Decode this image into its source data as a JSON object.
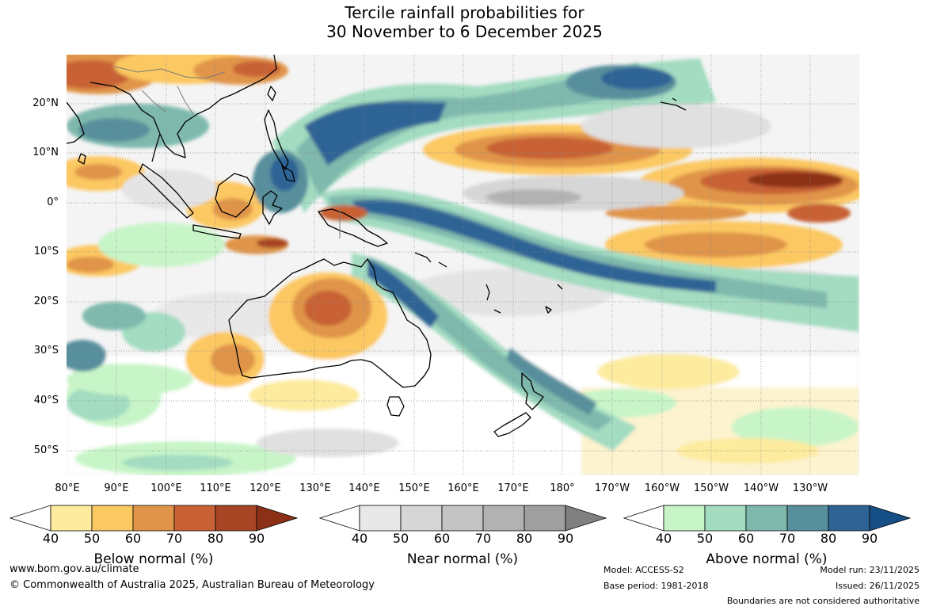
{
  "title": {
    "line1": "Tercile rainfall probabilities for",
    "line2": "30 November to 6 December 2025"
  },
  "map": {
    "region": "Australia, Maritime Continent and South-West Pacific",
    "lat_labels": [
      "20°N",
      "10°N",
      "0°",
      "10°S",
      "20°S",
      "30°S",
      "40°S",
      "50°S"
    ],
    "lon_labels": [
      "80°E",
      "90°E",
      "100°E",
      "110°E",
      "120°E",
      "130°E",
      "140°E",
      "150°E",
      "160°E",
      "170°E",
      "180°",
      "170°W",
      "160°W",
      "150°W",
      "140°W",
      "130°W"
    ]
  },
  "legends": [
    {
      "title": "Below normal (%)",
      "ticks": [
        "40",
        "50",
        "60",
        "70",
        "80",
        "90"
      ],
      "colors": [
        "#ffffff",
        "#fdeb9e",
        "#fcc862",
        "#e0944a",
        "#c86235",
        "#a74424",
        "#8c3118"
      ]
    },
    {
      "title": "Near normal (%)",
      "ticks": [
        "40",
        "50",
        "60",
        "70",
        "80",
        "90"
      ],
      "colors": [
        "#ffffff",
        "#e8e8e8",
        "#d6d6d6",
        "#c4c4c4",
        "#b2b2b2",
        "#9f9f9f",
        "#808080"
      ]
    },
    {
      "title": "Above normal (%)",
      "ticks": [
        "40",
        "50",
        "60",
        "70",
        "80",
        "90"
      ],
      "colors": [
        "#ffffff",
        "#c8f5c8",
        "#a3dcc1",
        "#7fb9ad",
        "#588f9c",
        "#2f6395",
        "#164e86"
      ]
    }
  ],
  "footer": {
    "website": "www.bom.gov.au/climate",
    "copyright": "© Commonwealth of Australia 2025, Australian Bureau of Meteorology",
    "model": "Model: ACCESS-S2",
    "base_period": "Base period: 1981-2018",
    "model_run": "Model run: 23/11/2025",
    "issued": "Issued: 26/11/2025",
    "disclaimer": "Boundaries are not considered authoritative"
  }
}
